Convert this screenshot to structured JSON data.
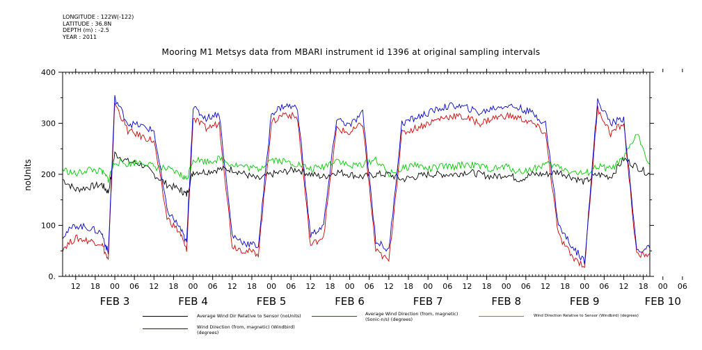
{
  "meta": {
    "longitude": "LONGITUDE : 122W(-122)",
    "latitude": "LATITUDE : 36.8N",
    "depth": "DEPTH (m) : -2.5",
    "year": "YEAR : 2011"
  },
  "chart_data": {
    "type": "line",
    "title": "Mooring M1 Metsys data from MBARI instrument id 1396 at original sampling intervals",
    "ylabel": "noUnits",
    "xlabel": "",
    "ylim": [
      0,
      400
    ],
    "yticks": [
      "0.",
      "100",
      "200",
      "300",
      "400"
    ],
    "xlim_hours": [
      8,
      188
    ],
    "hour_ticks": [
      "12",
      "18",
      "00",
      "06",
      "12",
      "18",
      "00",
      "06",
      "12",
      "18",
      "00",
      "06",
      "12",
      "18",
      "00",
      "06",
      "12",
      "18",
      "00",
      "06",
      "12",
      "18",
      "00",
      "06",
      "12",
      "18",
      "00",
      "06",
      "12",
      "18",
      "00",
      "06"
    ],
    "day_labels": [
      "FEB  3",
      "FEB  4",
      "FEB  5",
      "FEB  6",
      "FEB  7",
      "FEB  8",
      "FEB  9",
      "FEB 10"
    ],
    "grid": false,
    "legend_position": "bottom",
    "series": [
      {
        "name": "Average Wind Dir Relative to Sensor (noUnits)",
        "color": "#000000",
        "x": [
          8,
          12,
          16,
          20,
          22,
          24,
          28,
          32,
          36,
          40,
          44,
          46,
          48,
          52,
          56,
          60,
          64,
          68,
          72,
          76,
          80,
          84,
          88,
          92,
          96,
          100,
          104,
          108,
          112,
          116,
          120,
          124,
          128,
          132,
          136,
          140,
          144,
          148,
          152,
          156,
          160,
          164,
          168,
          172,
          176,
          180,
          184,
          188
        ],
        "y": [
          190,
          170,
          175,
          180,
          165,
          240,
          225,
          220,
          200,
          180,
          170,
          160,
          205,
          205,
          210,
          210,
          200,
          190,
          200,
          205,
          210,
          200,
          195,
          205,
          200,
          195,
          200,
          200,
          190,
          195,
          200,
          200,
          200,
          205,
          200,
          195,
          200,
          190,
          200,
          200,
          205,
          195,
          185,
          200,
          195,
          230,
          215,
          200
        ]
      },
      {
        "name": "Average Wind Direction (from, magnetic) (Sonic-n/s) (degrees)",
        "color": "#d00000",
        "x": [
          8,
          12,
          16,
          20,
          22,
          24,
          28,
          32,
          36,
          40,
          44,
          46,
          48,
          52,
          56,
          60,
          64,
          68,
          72,
          76,
          80,
          84,
          88,
          92,
          96,
          100,
          104,
          108,
          112,
          116,
          120,
          124,
          128,
          132,
          136,
          140,
          144,
          148,
          152,
          156,
          160,
          164,
          168,
          172,
          176,
          180,
          184,
          188
        ],
        "y": [
          55,
          75,
          70,
          65,
          30,
          340,
          285,
          275,
          265,
          115,
          85,
          50,
          310,
          290,
          300,
          60,
          50,
          45,
          300,
          320,
          310,
          60,
          80,
          290,
          280,
          300,
          50,
          30,
          280,
          290,
          300,
          310,
          315,
          310,
          300,
          310,
          315,
          310,
          300,
          280,
          80,
          40,
          20,
          330,
          280,
          300,
          40,
          45
        ]
      },
      {
        "name": "Wind Direction Relative to Sensor (Windbird) (degrees)",
        "color": "#00cc00",
        "x": [
          8,
          12,
          16,
          20,
          22,
          24,
          28,
          32,
          36,
          40,
          44,
          46,
          48,
          52,
          56,
          60,
          64,
          68,
          72,
          76,
          80,
          84,
          88,
          92,
          96,
          100,
          104,
          108,
          112,
          116,
          120,
          124,
          128,
          132,
          136,
          140,
          144,
          148,
          152,
          156,
          160,
          164,
          168,
          172,
          176,
          180,
          184,
          188
        ],
        "y": [
          210,
          200,
          210,
          205,
          190,
          225,
          220,
          225,
          215,
          210,
          200,
          190,
          230,
          225,
          230,
          220,
          215,
          210,
          230,
          225,
          220,
          210,
          215,
          230,
          215,
          220,
          230,
          200,
          210,
          220,
          210,
          215,
          215,
          220,
          215,
          210,
          215,
          205,
          210,
          220,
          215,
          205,
          200,
          215,
          210,
          230,
          280,
          220
        ]
      },
      {
        "name": "Wind Direction (from, magnetic) (Windbird) (degrees)",
        "color": "#0000d0",
        "x": [
          8,
          12,
          16,
          20,
          22,
          24,
          28,
          32,
          36,
          40,
          44,
          46,
          48,
          52,
          56,
          60,
          64,
          68,
          72,
          76,
          80,
          84,
          88,
          92,
          96,
          100,
          104,
          108,
          112,
          116,
          120,
          124,
          128,
          132,
          136,
          140,
          144,
          148,
          152,
          156,
          160,
          164,
          168,
          172,
          176,
          180,
          184,
          188
        ],
        "y": [
          80,
          100,
          95,
          85,
          45,
          350,
          300,
          295,
          285,
          130,
          95,
          65,
          330,
          310,
          320,
          80,
          65,
          60,
          320,
          335,
          330,
          80,
          100,
          310,
          295,
          320,
          70,
          50,
          300,
          310,
          320,
          330,
          335,
          330,
          320,
          330,
          335,
          330,
          320,
          300,
          100,
          60,
          30,
          345,
          300,
          310,
          50,
          55
        ]
      }
    ]
  }
}
